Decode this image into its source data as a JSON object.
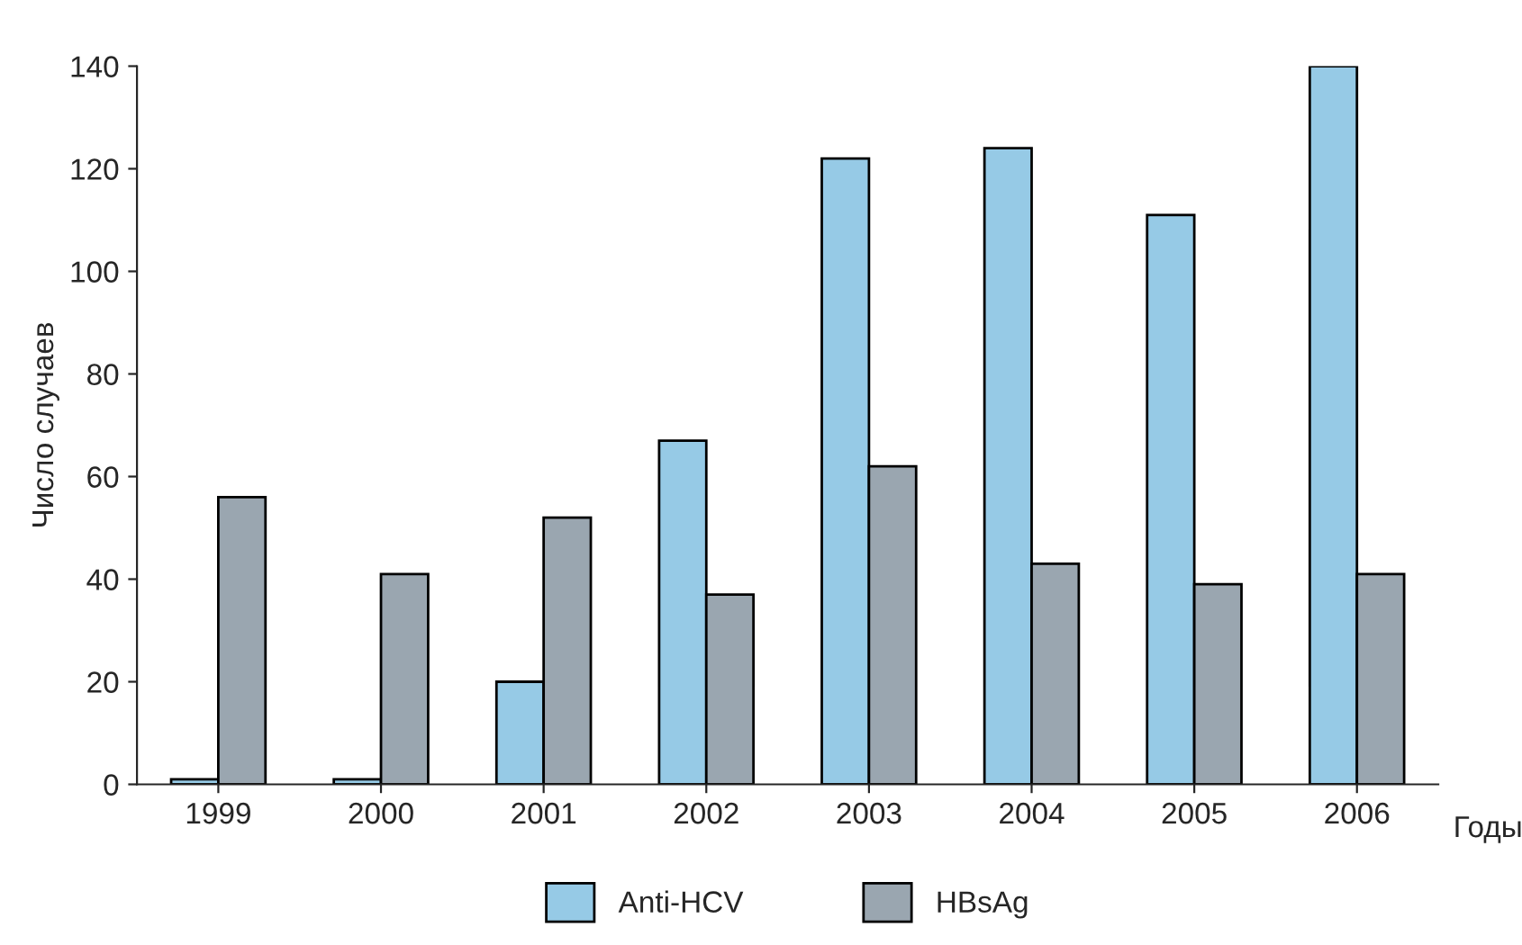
{
  "chart_data": {
    "type": "bar",
    "xlabel": "Годы",
    "ylabel": "Число случаев",
    "categories": [
      "1999",
      "2000",
      "2001",
      "2002",
      "2003",
      "2004",
      "2005",
      "2006"
    ],
    "series": [
      {
        "name": "Anti-HCV",
        "color": "#96cae6",
        "values": [
          1,
          1,
          20,
          67,
          122,
          124,
          111,
          140
        ]
      },
      {
        "name": "HBsAg",
        "color": "#9aa6b0",
        "values": [
          56,
          41,
          52,
          37,
          62,
          43,
          39,
          41
        ]
      }
    ],
    "ylim": [
      0,
      140
    ],
    "yticks": [
      0,
      20,
      40,
      60,
      80,
      100,
      120,
      140
    ],
    "grid": false,
    "legend": "bottom"
  }
}
